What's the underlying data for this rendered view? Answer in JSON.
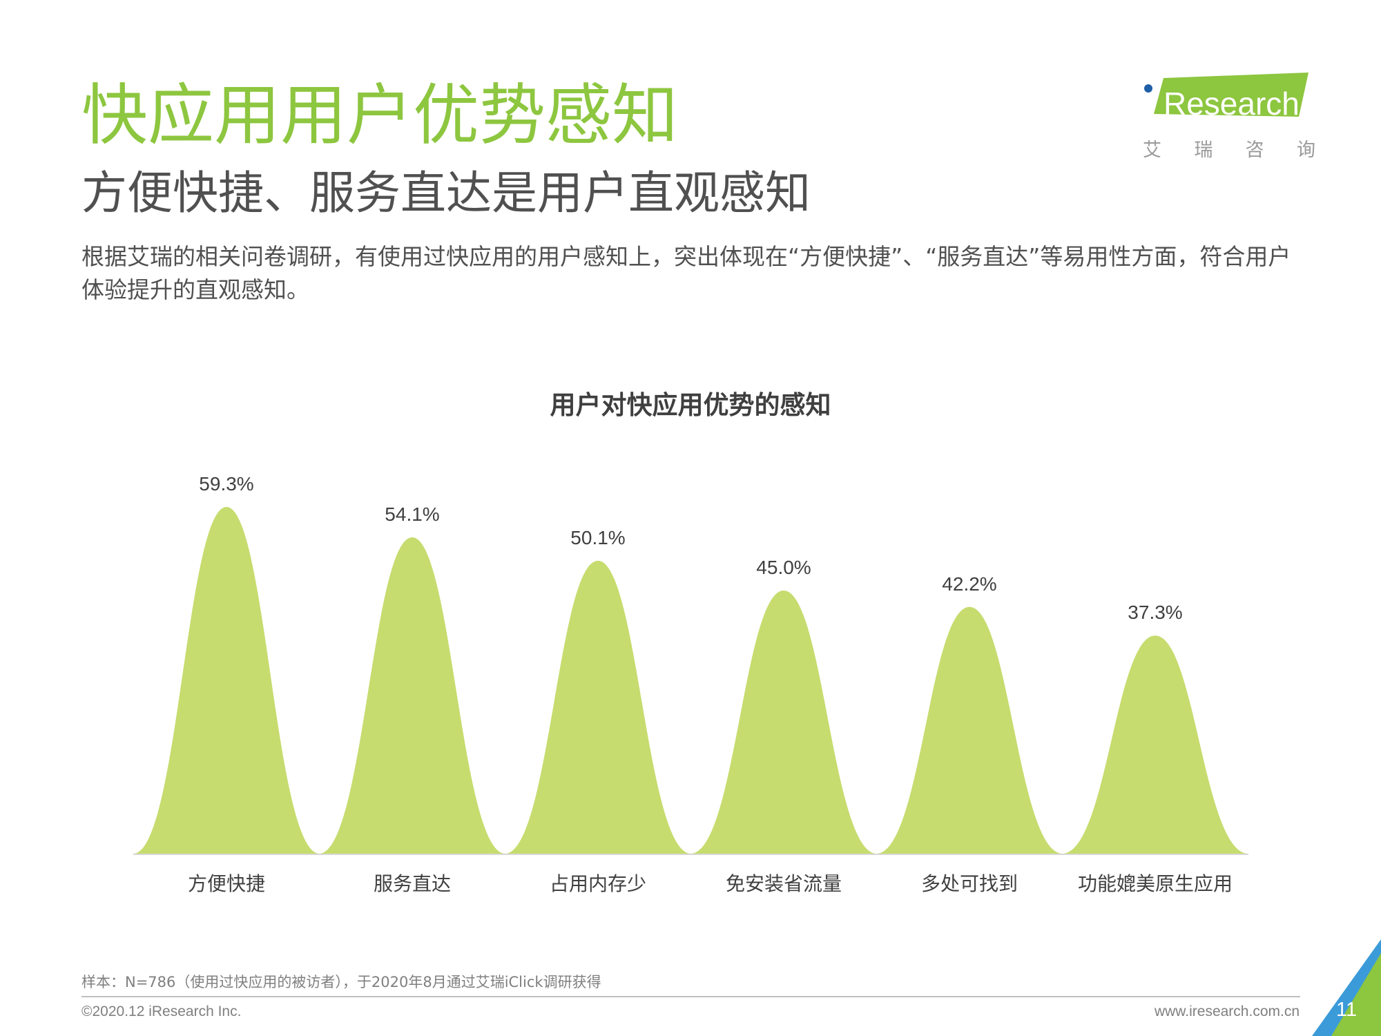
{
  "header": {
    "title": "快应用用户优势感知",
    "subtitle": "方便快捷、服务直达是用户直观感知",
    "description": "根据艾瑞的相关问卷调研，有使用过快应用的用户感知上，突出体现在“方便快捷”、“服务直达”等易用性方面，符合用户体验提升的直观感知。"
  },
  "logo": {
    "text": "Research",
    "cn_chars": [
      "艾",
      "瑞",
      "咨",
      "询"
    ]
  },
  "colors": {
    "accent": "#8dc63f",
    "bar": "#c6dc6f"
  },
  "chart_data": {
    "type": "area",
    "title": "用户对快应用优势的感知",
    "categories": [
      "方便快捷",
      "服务直达",
      "占用内存少",
      "免安装省流量",
      "多处可找到",
      "功能媲美原生应用"
    ],
    "values": [
      59.3,
      54.1,
      50.1,
      45.0,
      42.2,
      37.3
    ],
    "value_labels": [
      "59.3%",
      "54.1%",
      "50.1%",
      "45.0%",
      "42.2%",
      "37.3%"
    ],
    "unit": "%",
    "ylim": [
      0,
      59.3
    ],
    "grid": false,
    "legend": "none"
  },
  "footer": {
    "footnote": "样本：N=786（使用过快应用的被访者），于2020年8月通过艾瑞iClick调研获得",
    "copyright": "©2020.12 iResearch Inc.",
    "website": "www.iresearch.com.cn",
    "page_number": "11"
  }
}
